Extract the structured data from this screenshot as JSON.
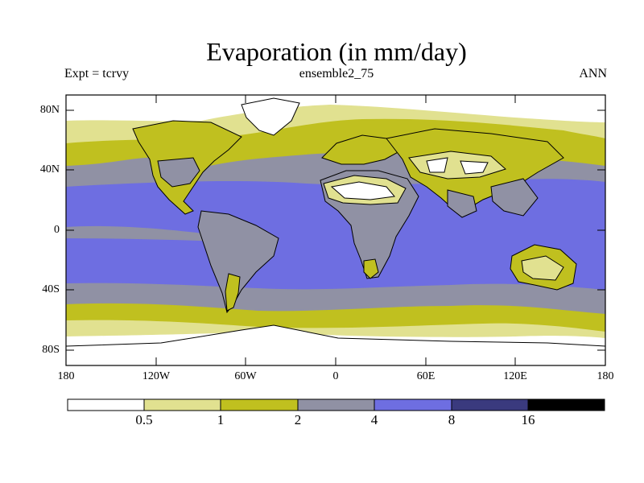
{
  "title": "Evaporation (in mm/day)",
  "subtitle_left": "Expt = tcrvy",
  "subtitle_center": "ensemble2_75",
  "subtitle_right": "ANN",
  "y_ticks": [
    "80N",
    "40N",
    "0",
    "40S",
    "80S"
  ],
  "x_ticks": [
    "180",
    "120W",
    "60W",
    "0",
    "60E",
    "120E",
    "180"
  ],
  "colorbar": {
    "labels": [
      "0.5",
      "1",
      "2",
      "4",
      "8",
      "16"
    ],
    "colors": [
      "#ffffff",
      "#e1e190",
      "#c0c01f",
      "#9091a4",
      "#6e6ee1",
      "#3a3a7e",
      "#000000"
    ]
  }
}
